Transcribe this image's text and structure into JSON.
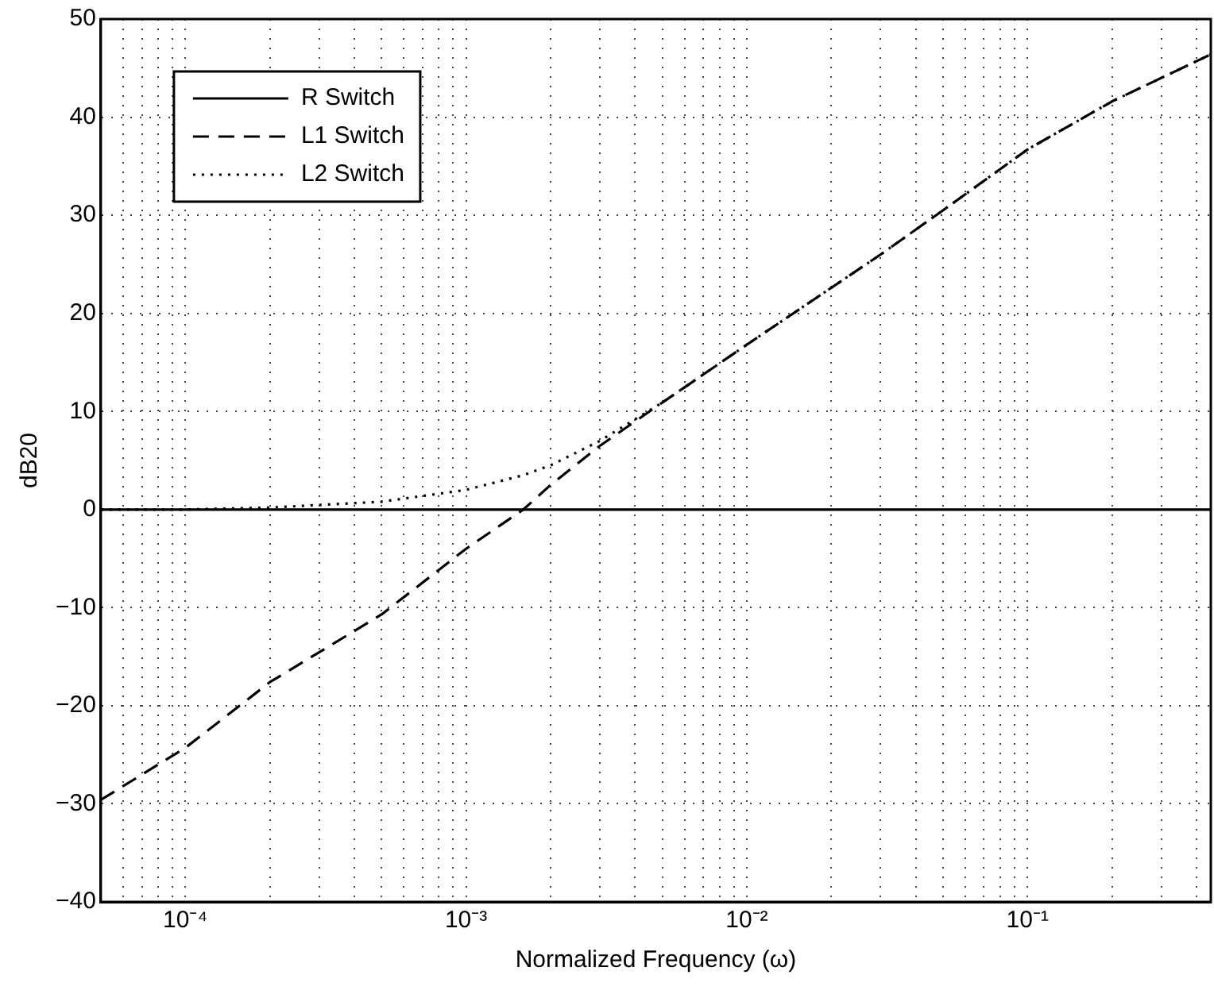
{
  "chart_data": {
    "type": "line",
    "xlabel": "Normalized Frequency (ω)",
    "ylabel": "dB20",
    "log": "x",
    "grid": true,
    "legend": "top left",
    "marker": "none",
    "x": [
      5e-05,
      0.0001,
      0.0002,
      0.0005,
      0.001,
      0.0016,
      0.002,
      0.003,
      0.005,
      0.01,
      0.03,
      0.05,
      0.1,
      0.2,
      0.3,
      0.45
    ],
    "series": [
      {
        "name": "R Switch",
        "color": "#000000",
        "line_style": "solid",
        "values": [
          0,
          0,
          0,
          0,
          0,
          0,
          0,
          0,
          0,
          0,
          0,
          0,
          0,
          0,
          0,
          0
        ]
      },
      {
        "name": "L1 Switch",
        "color": "#000000",
        "line_style": "dashed",
        "values": [
          -29.6,
          -24.3,
          -17.6,
          -10.7,
          -4,
          0,
          2.5,
          6.5,
          10.9,
          16.8,
          26,
          30.5,
          36.7,
          41.6,
          44,
          46.4
        ]
      },
      {
        "name": "L2 Switch",
        "color": "#000000",
        "line_style": "dotted",
        "values": [
          0,
          0,
          0.2,
          0.8,
          2,
          3.5,
          4.5,
          7,
          10.9,
          16.8,
          26,
          30.5,
          36.7,
          41.6,
          44,
          46.4
        ]
      }
    ],
    "xlim": [
      5e-05,
      0.45
    ],
    "xticks": [
      {
        "value": 6e-05,
        "label": null
      },
      {
        "value": 7e-05,
        "label": null
      },
      {
        "value": 8e-05,
        "label": null
      },
      {
        "value": 9e-05,
        "label": null
      },
      {
        "value": 0.0001,
        "label": "10⁻⁴"
      },
      {
        "value": 0.0002,
        "label": null
      },
      {
        "value": 0.0003,
        "label": null
      },
      {
        "value": 0.0004,
        "label": null
      },
      {
        "value": 0.0005,
        "label": null
      },
      {
        "value": 0.0006,
        "label": null
      },
      {
        "value": 0.0007,
        "label": null
      },
      {
        "value": 0.0008,
        "label": null
      },
      {
        "value": 0.0009,
        "label": null
      },
      {
        "value": 0.001,
        "label": "10⁻³"
      },
      {
        "value": 0.002,
        "label": null
      },
      {
        "value": 0.003,
        "label": null
      },
      {
        "value": 0.004,
        "label": null
      },
      {
        "value": 0.005,
        "label": null
      },
      {
        "value": 0.006,
        "label": null
      },
      {
        "value": 0.007,
        "label": null
      },
      {
        "value": 0.008,
        "label": null
      },
      {
        "value": 0.009,
        "label": null
      },
      {
        "value": 0.01,
        "label": "10⁻²"
      },
      {
        "value": 0.02,
        "label": null
      },
      {
        "value": 0.03,
        "label": null
      },
      {
        "value": 0.04,
        "label": null
      },
      {
        "value": 0.05,
        "label": null
      },
      {
        "value": 0.06,
        "label": null
      },
      {
        "value": 0.07,
        "label": null
      },
      {
        "value": 0.08,
        "label": null
      },
      {
        "value": 0.09,
        "label": null
      },
      {
        "value": 0.1,
        "label": "10⁻¹"
      },
      {
        "value": 0.2,
        "label": null
      },
      {
        "value": 0.3,
        "label": null
      },
      {
        "value": 0.4,
        "label": null
      }
    ],
    "ylim": [
      -40,
      50
    ],
    "yticks": [
      -40,
      -30,
      -20,
      -10,
      0,
      10,
      20,
      30,
      40,
      50
    ]
  }
}
